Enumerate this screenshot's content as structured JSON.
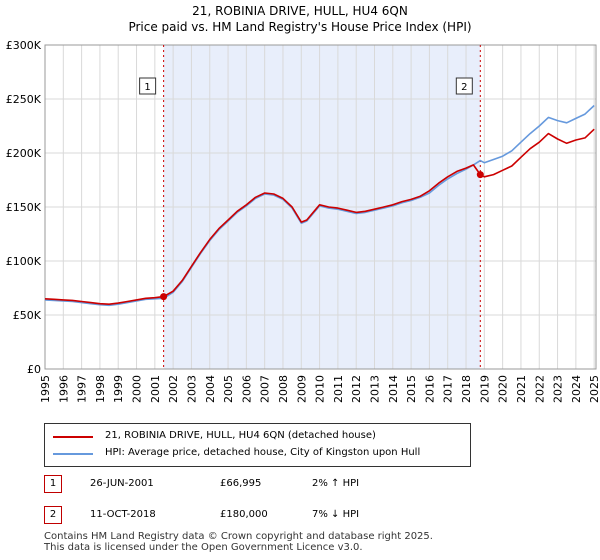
{
  "header": {
    "title": "21, ROBINIA DRIVE, HULL, HU4 6QN",
    "subtitle": "Price paid vs. HM Land Registry's House Price Index (HPI)"
  },
  "colors": {
    "red": "#cc0000",
    "blue": "#6699dd",
    "shade": "#e8eefb",
    "grid": "#d9d9d9"
  },
  "chart_data": {
    "type": "line",
    "title": "21, ROBINIA DRIVE, HULL, HU4 6QN",
    "subtitle": "Price paid vs. HM Land Registry's House Price Index (HPI)",
    "xlabel": "",
    "ylabel": "",
    "xlim": [
      1995,
      2025.1
    ],
    "ylim": [
      0,
      300000
    ],
    "x_ticks": [
      "1995",
      "1996",
      "1997",
      "1998",
      "1999",
      "2000",
      "2001",
      "2002",
      "2003",
      "2004",
      "2005",
      "2006",
      "2007",
      "2008",
      "2009",
      "2010",
      "2011",
      "2012",
      "2013",
      "2014",
      "2015",
      "2016",
      "2017",
      "2018",
      "2019",
      "2020",
      "2021",
      "2022",
      "2023",
      "2024",
      "2025"
    ],
    "y_ticks": [
      {
        "value": 0,
        "label": "£0"
      },
      {
        "value": 50000,
        "label": "£50K"
      },
      {
        "value": 100000,
        "label": "£100K"
      },
      {
        "value": 150000,
        "label": "£150K"
      },
      {
        "value": 200000,
        "label": "£200K"
      },
      {
        "value": 250000,
        "label": "£250K"
      },
      {
        "value": 300000,
        "label": "£300K"
      }
    ],
    "grid": true,
    "shaded_region": [
      2001.48,
      2018.78
    ],
    "markers": [
      {
        "label": "1",
        "x": 2001.48,
        "y": 66995
      },
      {
        "label": "2",
        "x": 2018.78,
        "y": 180000
      }
    ],
    "series": [
      {
        "name": "21, ROBINIA DRIVE, HULL, HU4 6QN (detached house)",
        "color": "#cc0000",
        "x": [
          1995,
          1995.5,
          1996,
          1996.5,
          1997,
          1997.5,
          1998,
          1998.5,
          1999,
          1999.5,
          2000,
          2000.5,
          2001,
          2001.48,
          2002,
          2002.5,
          2003,
          2003.5,
          2004,
          2004.5,
          2005,
          2005.5,
          2006,
          2006.5,
          2007,
          2007.5,
          2008,
          2008.5,
          2009,
          2009.3,
          2009.7,
          2010,
          2010.5,
          2011,
          2011.5,
          2012,
          2012.5,
          2013,
          2013.5,
          2014,
          2014.5,
          2015,
          2015.5,
          2016,
          2016.5,
          2017,
          2017.5,
          2018,
          2018.4,
          2018.78,
          2019,
          2019.5,
          2020,
          2020.5,
          2021,
          2021.5,
          2022,
          2022.5,
          2023,
          2023.5,
          2024,
          2024.5,
          2025
        ],
        "values": [
          65000,
          64500,
          64000,
          63500,
          62500,
          61500,
          60500,
          60000,
          61000,
          62500,
          64000,
          65500,
          66000,
          66995,
          72000,
          82000,
          95000,
          108000,
          120000,
          130000,
          138000,
          146000,
          152000,
          159000,
          163000,
          162000,
          158000,
          150000,
          136000,
          138000,
          146000,
          152000,
          150000,
          149000,
          147000,
          145000,
          146000,
          148000,
          150000,
          152000,
          155000,
          157000,
          160000,
          165000,
          172000,
          178000,
          183000,
          186000,
          189000,
          180000,
          178000,
          180000,
          184000,
          188000,
          196000,
          204000,
          210000,
          218000,
          213000,
          209000,
          212000,
          214000,
          222000
        ]
      },
      {
        "name": "HPI: Average price, detached house, City of Kingston upon Hull",
        "color": "#6699dd",
        "x": [
          1995,
          1995.5,
          1996,
          1996.5,
          1997,
          1997.5,
          1998,
          1998.5,
          1999,
          1999.5,
          2000,
          2000.5,
          2001,
          2001.48,
          2002,
          2002.5,
          2003,
          2003.5,
          2004,
          2004.5,
          2005,
          2005.5,
          2006,
          2006.5,
          2007,
          2007.5,
          2008,
          2008.5,
          2009,
          2009.3,
          2009.7,
          2010,
          2010.5,
          2011,
          2011.5,
          2012,
          2012.5,
          2013,
          2013.5,
          2014,
          2014.5,
          2015,
          2015.5,
          2016,
          2016.5,
          2017,
          2017.5,
          2018,
          2018.4,
          2018.78,
          2019,
          2019.5,
          2020,
          2020.5,
          2021,
          2021.5,
          2022,
          2022.5,
          2023,
          2023.5,
          2024,
          2024.5,
          2025
        ],
        "values": [
          64000,
          63500,
          63000,
          62500,
          61500,
          60500,
          59500,
          59000,
          60000,
          61500,
          63000,
          64500,
          65000,
          65500,
          71000,
          81000,
          94000,
          107000,
          119000,
          129000,
          137000,
          145000,
          151000,
          158000,
          162000,
          161000,
          157000,
          149000,
          135000,
          137000,
          145000,
          151000,
          149000,
          148000,
          146000,
          144000,
          145000,
          147000,
          149000,
          151000,
          154000,
          156000,
          159000,
          163000,
          170000,
          176000,
          181000,
          185000,
          189000,
          193000,
          191000,
          194000,
          197000,
          202000,
          210000,
          218000,
          225000,
          233000,
          230000,
          228000,
          232000,
          236000,
          244000
        ]
      }
    ]
  },
  "legend": {
    "red_label": "21, ROBINIA DRIVE, HULL, HU4 6QN (detached house)",
    "blue_label": "HPI: Average price, detached house, City of Kingston upon Hull"
  },
  "transactions": [
    {
      "id": "1",
      "date": "26-JUN-2001",
      "price": "£66,995",
      "hpi": "2% ↑ HPI"
    },
    {
      "id": "2",
      "date": "11-OCT-2018",
      "price": "£180,000",
      "hpi": "7% ↓ HPI"
    }
  ],
  "footer": {
    "line1": "Contains HM Land Registry data © Crown copyright and database right 2025.",
    "line2": "This data is licensed under the Open Government Licence v3.0."
  }
}
